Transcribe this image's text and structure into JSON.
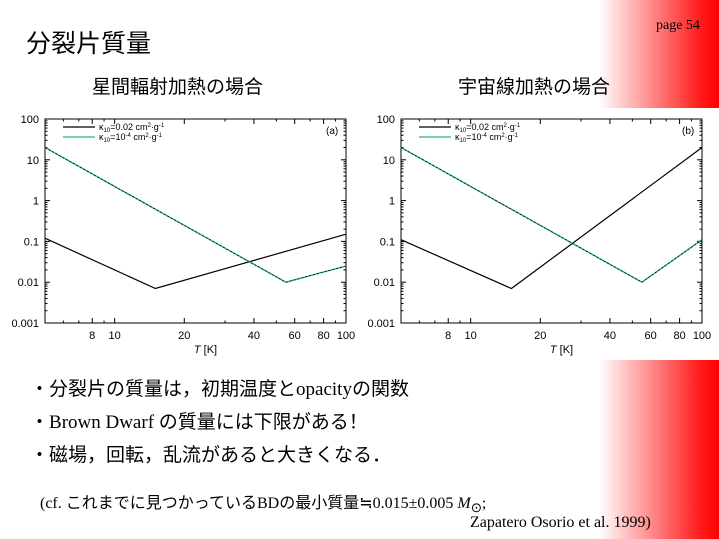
{
  "page": {
    "number": "page 54",
    "title": "分裂片質量"
  },
  "chart_data": [
    {
      "type": "line",
      "title": "星間輻射加熱の場合",
      "panel": "(a)",
      "xlabel": "T [K]",
      "x_scale": "log",
      "y_scale": "log",
      "xlim": [
        5,
        100
      ],
      "ylim": [
        0.001,
        100
      ],
      "x_ticks": [
        "8",
        "10",
        "20",
        "40",
        "60",
        "80",
        "100"
      ],
      "y_ticks": [
        "100",
        "10",
        "1",
        "0.1",
        "0.01",
        "0.001"
      ],
      "legend": "top-left",
      "series": [
        {
          "name": "κ10=0.02 cm²·g⁻¹",
          "color": "#000000",
          "points": [
            [
              5,
              0.12
            ],
            [
              15,
              0.007
            ],
            [
              100,
              0.15
            ]
          ]
        },
        {
          "name": "κ10=10⁻⁴ cm²·g⁻¹",
          "color": "#2bb07a",
          "points": [
            [
              5,
              20
            ],
            [
              55,
              0.01
            ],
            [
              100,
              0.025
            ]
          ]
        }
      ]
    },
    {
      "type": "line",
      "title": "宇宙線加熱の場合",
      "panel": "(b)",
      "xlabel": "T [K]",
      "x_scale": "log",
      "y_scale": "log",
      "xlim": [
        5,
        100
      ],
      "ylim": [
        0.001,
        100
      ],
      "x_ticks": [
        "8",
        "10",
        "20",
        "40",
        "60",
        "80",
        "100"
      ],
      "y_ticks": [
        "100",
        "10",
        "1",
        "0.1",
        "0.01",
        "0.001"
      ],
      "legend": "top-left",
      "series": [
        {
          "name": "κ10=0.02 cm²·g⁻¹",
          "color": "#000000",
          "points": [
            [
              5,
              0.11
            ],
            [
              15,
              0.007
            ],
            [
              100,
              20
            ]
          ]
        },
        {
          "name": "κ10=10⁻⁴ cm²·g⁻¹",
          "color": "#2bb07a",
          "points": [
            [
              5,
              20
            ],
            [
              55,
              0.01
            ],
            [
              100,
              0.11
            ]
          ]
        }
      ]
    }
  ],
  "bullets": [
    {
      "prefix": "・分裂片の質量は，初期温度と",
      "serif": "opacity",
      "suffix": "の関数"
    },
    {
      "prefix": "・",
      "serif": "Brown Dwarf ",
      "suffix": "の質量には下限がある！"
    },
    {
      "prefix": "・磁場，回転，乱流があると大きくなる．",
      "serif": "",
      "suffix": ""
    }
  ],
  "note": {
    "a": "(cf. ",
    "b": "これまでに見つかっている",
    "c": "BD",
    "d": "の最小質量",
    "e": "≒0.015±0.005 ",
    "f": "M",
    "g": "⊙",
    "h": ";",
    "ref": "Zapatero Osorio et al. 1999)"
  }
}
